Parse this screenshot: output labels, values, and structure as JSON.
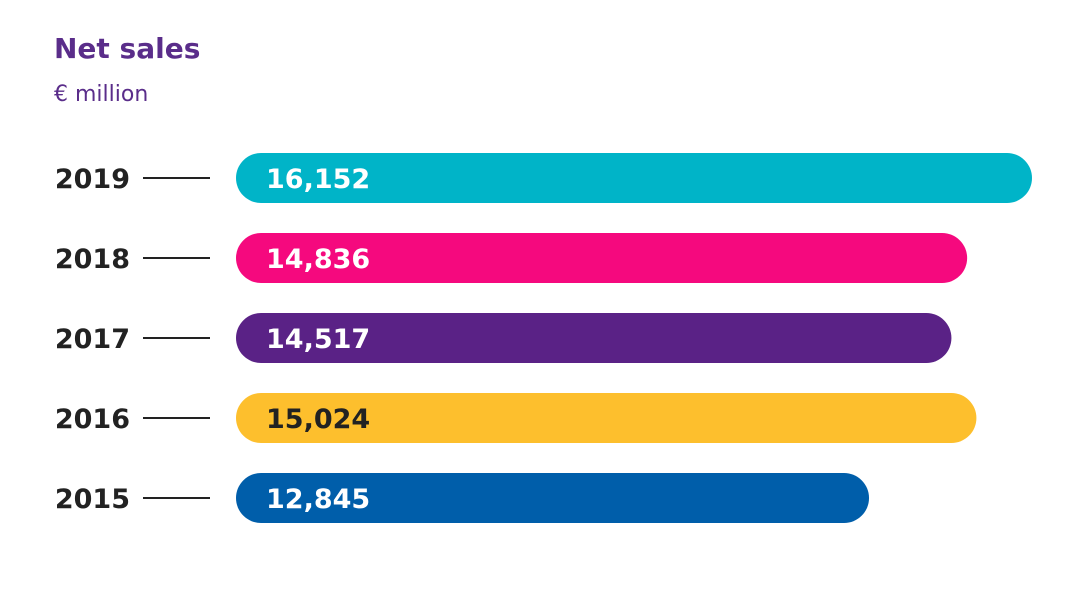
{
  "header": {
    "title": "Net sales",
    "subtitle": "€ million"
  },
  "colors": {
    "title": "#5a2d8a",
    "year_label": "#222222",
    "connector": "#222222"
  },
  "chart_data": {
    "type": "bar",
    "orientation": "horizontal",
    "title": "Net sales",
    "subtitle": "€ million",
    "categories": [
      "2019",
      "2018",
      "2017",
      "2016",
      "2015"
    ],
    "values": [
      16152,
      14836,
      14517,
      15024,
      12845
    ],
    "value_labels": [
      "16,152",
      "14,836",
      "14,517",
      "15,024",
      "12,845"
    ],
    "bar_colors": [
      "#00b4c8",
      "#f5097e",
      "#5a2286",
      "#fdbf2d",
      "#005eaa"
    ],
    "label_colors": [
      "#ffffff",
      "#ffffff",
      "#ffffff",
      "#222222",
      "#ffffff"
    ],
    "xlim": [
      0,
      16152
    ],
    "grid": false,
    "legend": "none"
  }
}
